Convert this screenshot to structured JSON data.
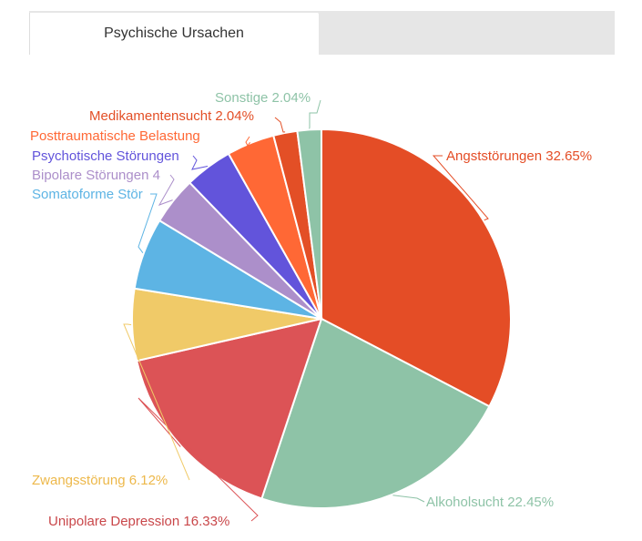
{
  "tabs": [
    {
      "label": "Psychische Ursachen",
      "active": true
    }
  ],
  "chart_data": {
    "type": "pie",
    "title": "",
    "slices": [
      {
        "value": 32.65,
        "color": "#E44D26",
        "label": "Angststörungen 32.65%"
      },
      {
        "value": 22.45,
        "color": "#8EC3A7",
        "label": "Alkoholsucht 22.45%"
      },
      {
        "value": 16.33,
        "color": "#DC5356",
        "label": "Unipolare Depression 16.33%"
      },
      {
        "value": 6.12,
        "color": "#F0CA68",
        "label": "Zwangsstörung 6.12%"
      },
      {
        "value": 6.12,
        "color": "#5DB4E4",
        "label": "Somatoforme Stör"
      },
      {
        "value": 4.08,
        "color": "#AC8FCA",
        "label": "Bipolare Störungen 4"
      },
      {
        "value": 4.08,
        "color": "#6254DB",
        "label": "Psychotische Störungen"
      },
      {
        "value": 4.08,
        "color": "#FF6835",
        "label": "Posttraumatische Belastung"
      },
      {
        "value": 2.04,
        "color": "#E34F26",
        "label": "Medikamentensucht 2.04%"
      },
      {
        "value": 2.04,
        "color": "#8EC3A7",
        "label": "Sonstige 2.04%"
      }
    ]
  }
}
